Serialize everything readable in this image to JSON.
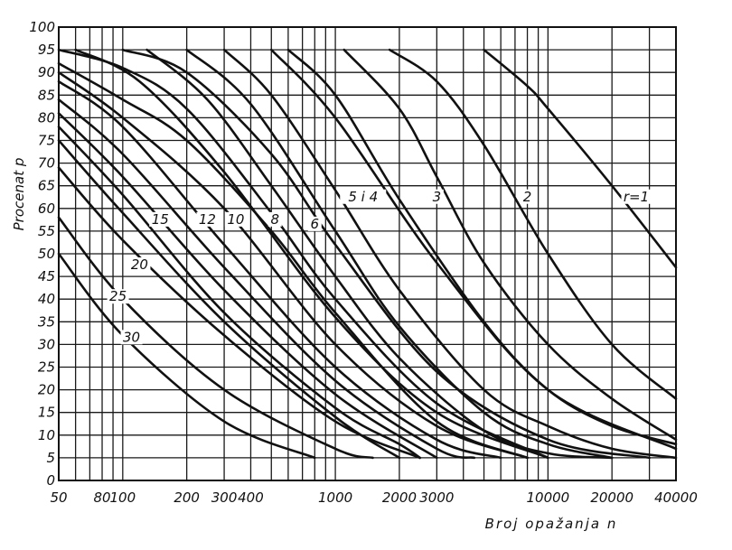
{
  "chart_data": {
    "type": "line",
    "title": "",
    "xlabel": "Broj opažanja n",
    "ylabel": "Procenat p",
    "x_scale": "log",
    "xlim": [
      50,
      40000
    ],
    "ylim": [
      0,
      100
    ],
    "grid": true,
    "x_ticks": [
      {
        "value": 50,
        "label": "50"
      },
      {
        "value": 80,
        "label": "80"
      },
      {
        "value": 100,
        "label": "100"
      },
      {
        "value": 200,
        "label": "200"
      },
      {
        "value": 300,
        "label": "300"
      },
      {
        "value": 400,
        "label": "400"
      },
      {
        "value": 1000,
        "label": "1000"
      },
      {
        "value": 2000,
        "label": "2000"
      },
      {
        "value": 3000,
        "label": "3000"
      },
      {
        "value": 10000,
        "label": "10000"
      },
      {
        "value": 20000,
        "label": "20000"
      },
      {
        "value": 40000,
        "label": "40000"
      }
    ],
    "y_ticks": [
      {
        "value": 0,
        "label": "0"
      },
      {
        "value": 5,
        "label": "5"
      },
      {
        "value": 10,
        "label": "10"
      },
      {
        "value": 15,
        "label": "15"
      },
      {
        "value": 20,
        "label": "20"
      },
      {
        "value": 25,
        "label": "25"
      },
      {
        "value": 30,
        "label": "30"
      },
      {
        "value": 35,
        "label": "35"
      },
      {
        "value": 40,
        "label": "40"
      },
      {
        "value": 45,
        "label": "45"
      },
      {
        "value": 50,
        "label": "50"
      },
      {
        "value": 55,
        "label": "55"
      },
      {
        "value": 60,
        "label": "60"
      },
      {
        "value": 65,
        "label": "65"
      },
      {
        "value": 70,
        "label": "70"
      },
      {
        "value": 75,
        "label": "75"
      },
      {
        "value": 80,
        "label": "80"
      },
      {
        "value": 85,
        "label": "85"
      },
      {
        "value": 90,
        "label": "90"
      },
      {
        "value": 95,
        "label": "95"
      },
      {
        "value": 100,
        "label": "100"
      }
    ],
    "series": [
      {
        "name": "r=1",
        "label": "r=1",
        "label_at": [
          26000,
          62
        ],
        "points": [
          [
            5000,
            95
          ],
          [
            8000,
            87
          ],
          [
            10000,
            82
          ],
          [
            20000,
            65
          ],
          [
            40000,
            47
          ]
        ]
      },
      {
        "name": "2",
        "label": "2",
        "label_at": [
          8000,
          62
        ],
        "points": [
          [
            1800,
            95
          ],
          [
            3000,
            88
          ],
          [
            5000,
            74
          ],
          [
            10000,
            50
          ],
          [
            20000,
            30
          ],
          [
            40000,
            18
          ]
        ]
      },
      {
        "name": "3",
        "label": "3",
        "label_at": [
          3000,
          62
        ],
        "points": [
          [
            1100,
            95
          ],
          [
            2000,
            82
          ],
          [
            3000,
            67
          ],
          [
            5000,
            48
          ],
          [
            10000,
            30
          ],
          [
            20000,
            18
          ],
          [
            40000,
            9
          ]
        ]
      },
      {
        "name": "5 i 4",
        "label": "5 i 4",
        "label_at": [
          1350,
          62
        ],
        "points": [
          [
            600,
            95
          ],
          [
            1000,
            85
          ],
          [
            2000,
            62
          ],
          [
            5000,
            35
          ],
          [
            10000,
            20
          ],
          [
            20000,
            12
          ],
          [
            40000,
            8
          ]
        ]
      },
      {
        "name": "6",
        "label": "6",
        "label_at": [
          800,
          56
        ],
        "points": [
          [
            300,
            95
          ],
          [
            500,
            85
          ],
          [
            1000,
            64
          ],
          [
            2000,
            42
          ],
          [
            5000,
            20
          ],
          [
            10000,
            12
          ],
          [
            20000,
            7
          ],
          [
            40000,
            5
          ]
        ]
      },
      {
        "name": "8",
        "label": "8",
        "label_at": [
          520,
          57
        ],
        "points": [
          [
            200,
            95
          ],
          [
            400,
            83
          ],
          [
            1000,
            55
          ],
          [
            2000,
            34
          ],
          [
            5000,
            15
          ],
          [
            10000,
            8
          ],
          [
            20000,
            5
          ]
        ]
      },
      {
        "name": "10",
        "label": "10",
        "label_at": [
          340,
          57
        ],
        "points": [
          [
            130,
            95
          ],
          [
            250,
            84
          ],
          [
            500,
            65
          ],
          [
            1000,
            45
          ],
          [
            2000,
            27
          ],
          [
            5000,
            11
          ],
          [
            10000,
            6
          ],
          [
            20000,
            5
          ]
        ]
      },
      {
        "name": "12",
        "label": "12",
        "label_at": [
          250,
          57
        ],
        "points": [
          [
            60,
            95
          ],
          [
            120,
            88
          ],
          [
            300,
            68
          ],
          [
            1000,
            36
          ],
          [
            3000,
            15
          ],
          [
            10000,
            5
          ]
        ]
      },
      {
        "name": "15",
        "label": "15",
        "label_at": [
          150,
          57
        ],
        "points": [
          [
            50,
            88
          ],
          [
            100,
            78
          ],
          [
            300,
            52
          ],
          [
            1000,
            25
          ],
          [
            3000,
            9
          ],
          [
            6000,
            5
          ]
        ]
      },
      {
        "name": "20",
        "label": "20",
        "label_at": [
          120,
          47
        ],
        "points": [
          [
            50,
            69
          ],
          [
            100,
            53
          ],
          [
            300,
            32
          ],
          [
            1000,
            13
          ],
          [
            2500,
            5
          ]
        ]
      },
      {
        "name": "25",
        "label": "25",
        "label_at": [
          95,
          40
        ],
        "points": [
          [
            50,
            58
          ],
          [
            100,
            40
          ],
          [
            300,
            20
          ],
          [
            1000,
            7
          ],
          [
            1500,
            5
          ]
        ]
      },
      {
        "name": "30",
        "label": "30",
        "label_at": [
          110,
          31
        ],
        "points": [
          [
            50,
            50
          ],
          [
            100,
            32
          ],
          [
            300,
            13
          ],
          [
            800,
            5
          ]
        ]
      }
    ],
    "extra_curves": [
      {
        "points": [
          [
            50,
            95
          ],
          [
            100,
            91
          ],
          [
            200,
            82
          ],
          [
            500,
            59
          ],
          [
            1000,
            40
          ],
          [
            3000,
            17
          ],
          [
            10000,
            5
          ]
        ]
      },
      {
        "points": [
          [
            50,
            92
          ],
          [
            100,
            84
          ],
          [
            200,
            75
          ],
          [
            500,
            55
          ],
          [
            1000,
            37
          ],
          [
            3000,
            13
          ],
          [
            8000,
            5
          ]
        ]
      },
      {
        "points": [
          [
            50,
            90
          ],
          [
            100,
            80
          ],
          [
            300,
            60
          ],
          [
            1000,
            30
          ],
          [
            3000,
            12
          ],
          [
            8000,
            5
          ]
        ]
      },
      {
        "points": [
          [
            50,
            84
          ],
          [
            100,
            72
          ],
          [
            300,
            47
          ],
          [
            1000,
            22
          ],
          [
            3000,
            7
          ],
          [
            4500,
            5
          ]
        ]
      },
      {
        "points": [
          [
            50,
            81
          ],
          [
            100,
            67
          ],
          [
            300,
            42
          ],
          [
            1000,
            19
          ],
          [
            3000,
            5
          ]
        ]
      },
      {
        "points": [
          [
            50,
            78
          ],
          [
            100,
            63
          ],
          [
            300,
            37
          ],
          [
            1000,
            16
          ],
          [
            2000,
            8
          ],
          [
            2500,
            5
          ]
        ]
      },
      {
        "points": [
          [
            50,
            75
          ],
          [
            100,
            59
          ],
          [
            300,
            35
          ],
          [
            1000,
            14
          ],
          [
            2000,
            5
          ]
        ]
      },
      {
        "points": [
          [
            100,
            95
          ],
          [
            200,
            90
          ],
          [
            500,
            72
          ],
          [
            1000,
            52
          ],
          [
            3000,
            24
          ],
          [
            10000,
            9
          ],
          [
            30000,
            5
          ]
        ]
      },
      {
        "points": [
          [
            500,
            95
          ],
          [
            1000,
            80
          ],
          [
            3000,
            48
          ],
          [
            10000,
            20
          ],
          [
            40000,
            7
          ]
        ]
      }
    ]
  }
}
